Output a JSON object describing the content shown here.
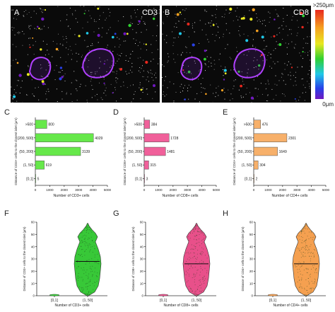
{
  "panels": {
    "A": {
      "letter": "A",
      "label": "CD3"
    },
    "B": {
      "letter": "B",
      "label": "CD8"
    },
    "C": {
      "letter": "C"
    },
    "D": {
      "letter": "D"
    },
    "E": {
      "letter": "E"
    },
    "F": {
      "letter": "F"
    },
    "G": {
      "letter": "G"
    },
    "H": {
      "letter": "H"
    }
  },
  "colorbar": {
    "top_label": ">250μm",
    "bottom_label": "0μm"
  },
  "chart_data": [
    {
      "panel": "C",
      "type": "bar",
      "orientation": "horizontal",
      "categories": [
        "[0,1]",
        "(1, 50]",
        "(50, 200]",
        "(200, 500]",
        ">500"
      ],
      "values": [
        5,
        619,
        3139,
        4029,
        800
      ],
      "value_labels": [
        "5",
        "619",
        "3139",
        "4029",
        "800"
      ],
      "color": "#66e84a",
      "xlabel": "Number of CD3+ cells",
      "ylabel": "Distance of CD3+ cells to the closest islet (μm)",
      "xlim": [
        0,
        5000
      ],
      "xticks": [
        "0",
        "1000",
        "2000",
        "3000",
        "4000",
        "5000"
      ]
    },
    {
      "panel": "D",
      "type": "bar",
      "orientation": "horizontal",
      "categories": [
        "[0,1]",
        "(1, 50]",
        "(50, 200]",
        "(200, 500]",
        ">500"
      ],
      "values": [
        3,
        315,
        1481,
        1728,
        384
      ],
      "value_labels": [
        "3",
        "315",
        "1481",
        "1728",
        "384"
      ],
      "color": "#f0609a",
      "xlabel": "Number of CD8+ cells",
      "ylabel": "Distance of CD8+ cells to the closest islet (μm)",
      "xlim": [
        0,
        5000
      ],
      "xticks": [
        "0",
        "1000",
        "2000",
        "3000",
        "4000",
        "5000"
      ]
    },
    {
      "panel": "E",
      "type": "bar",
      "orientation": "horizontal",
      "categories": [
        "[0,1]",
        "(1, 50]",
        "(50, 200]",
        "(200, 500]",
        ">500"
      ],
      "values": [
        2,
        304,
        1649,
        2301,
        476
      ],
      "value_labels": [
        "2",
        "304",
        "1649",
        "2301",
        "476"
      ],
      "color": "#f7b06a",
      "xlabel": "Number of CD4+ cells",
      "ylabel": "Distance of CD4+ cells to the closest islet (μm)",
      "xlim": [
        0,
        5000
      ],
      "xticks": [
        "0",
        "1000",
        "2000",
        "3000",
        "4000",
        "5000"
      ]
    },
    {
      "panel": "F",
      "type": "violin",
      "categories": [
        "[0,1]",
        "(1, 50]"
      ],
      "median_by_category": [
        0.5,
        28
      ],
      "color": "#38c838",
      "xlabel": "Number of CD3+ cells",
      "ylabel": "Distance of CD3+ cells to the closest islet (μm)",
      "ylim": [
        0,
        60
      ],
      "yticks": [
        "0",
        "10",
        "20",
        "30",
        "40",
        "50",
        "60"
      ]
    },
    {
      "panel": "G",
      "type": "violin",
      "categories": [
        "[0,1]",
        "(1, 50]"
      ],
      "median_by_category": [
        0.5,
        26
      ],
      "color": "#e8508a",
      "xlabel": "Number of CD8+ cells",
      "ylabel": "Distance of CD8+ cells to the closest islet (μm)",
      "ylim": [
        0,
        60
      ],
      "yticks": [
        "0",
        "10",
        "20",
        "30",
        "40",
        "50",
        "60"
      ]
    },
    {
      "panel": "H",
      "type": "violin",
      "categories": [
        "[0,1]",
        "(1, 50]"
      ],
      "median_by_category": [
        0.5,
        26
      ],
      "color": "#f5a050",
      "xlabel": "Number of CD4+ cells",
      "ylabel": "Distance of CD4+ cells to the closest islet (μm)",
      "ylim": [
        0,
        60
      ],
      "yticks": [
        "0",
        "10",
        "20",
        "30",
        "40",
        "50",
        "60"
      ]
    }
  ]
}
